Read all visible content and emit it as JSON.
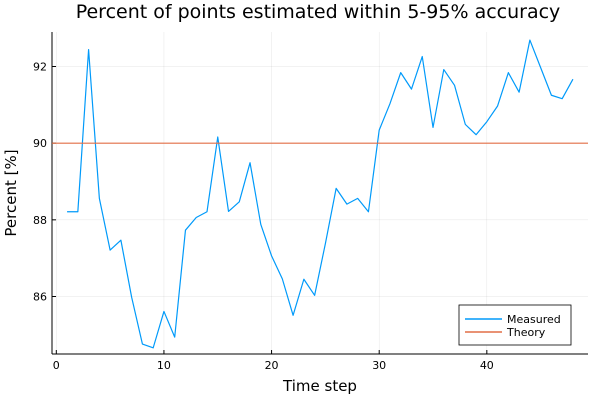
{
  "chart_data": {
    "type": "line",
    "title": "Percent of points estimated within 5-95% accuracy",
    "xlabel": "Time step",
    "ylabel": "Percent [%]",
    "xlim": [
      -0.4,
      49.4
    ],
    "ylim": [
      84.5,
      92.9
    ],
    "xticks": [
      0,
      10,
      20,
      30,
      40
    ],
    "yticks": [
      86,
      88,
      90,
      92
    ],
    "grid": true,
    "legend_position": "bottom-right",
    "series": [
      {
        "name": "Measured",
        "color": "#009AFA",
        "x": [
          1,
          2,
          3,
          4,
          5,
          6,
          7,
          8,
          9,
          10,
          11,
          12,
          13,
          14,
          15,
          16,
          17,
          18,
          19,
          20,
          21,
          22,
          23,
          24,
          25,
          26,
          27,
          28,
          29,
          30,
          31,
          32,
          33,
          34,
          35,
          36,
          37,
          38,
          39,
          40,
          41,
          42,
          43,
          44,
          45,
          46,
          47,
          48
        ],
        "y": [
          88.21,
          88.21,
          92.44,
          88.56,
          87.21,
          87.47,
          85.98,
          84.76,
          84.66,
          85.61,
          84.94,
          87.73,
          88.06,
          88.21,
          90.16,
          88.22,
          88.47,
          89.49,
          87.88,
          87.06,
          86.46,
          85.51,
          86.45,
          86.03,
          87.38,
          88.82,
          88.41,
          88.56,
          88.21,
          90.34,
          91.03,
          91.84,
          91.41,
          92.26,
          90.41,
          91.92,
          91.51,
          90.49,
          90.22,
          90.56,
          90.97,
          91.84,
          91.33,
          92.69,
          91.97,
          91.25,
          91.16,
          91.67
        ]
      },
      {
        "name": "Theory",
        "color": "#E26F46",
        "x": [
          -0.4,
          49.4
        ],
        "y": [
          90,
          90
        ]
      }
    ]
  }
}
